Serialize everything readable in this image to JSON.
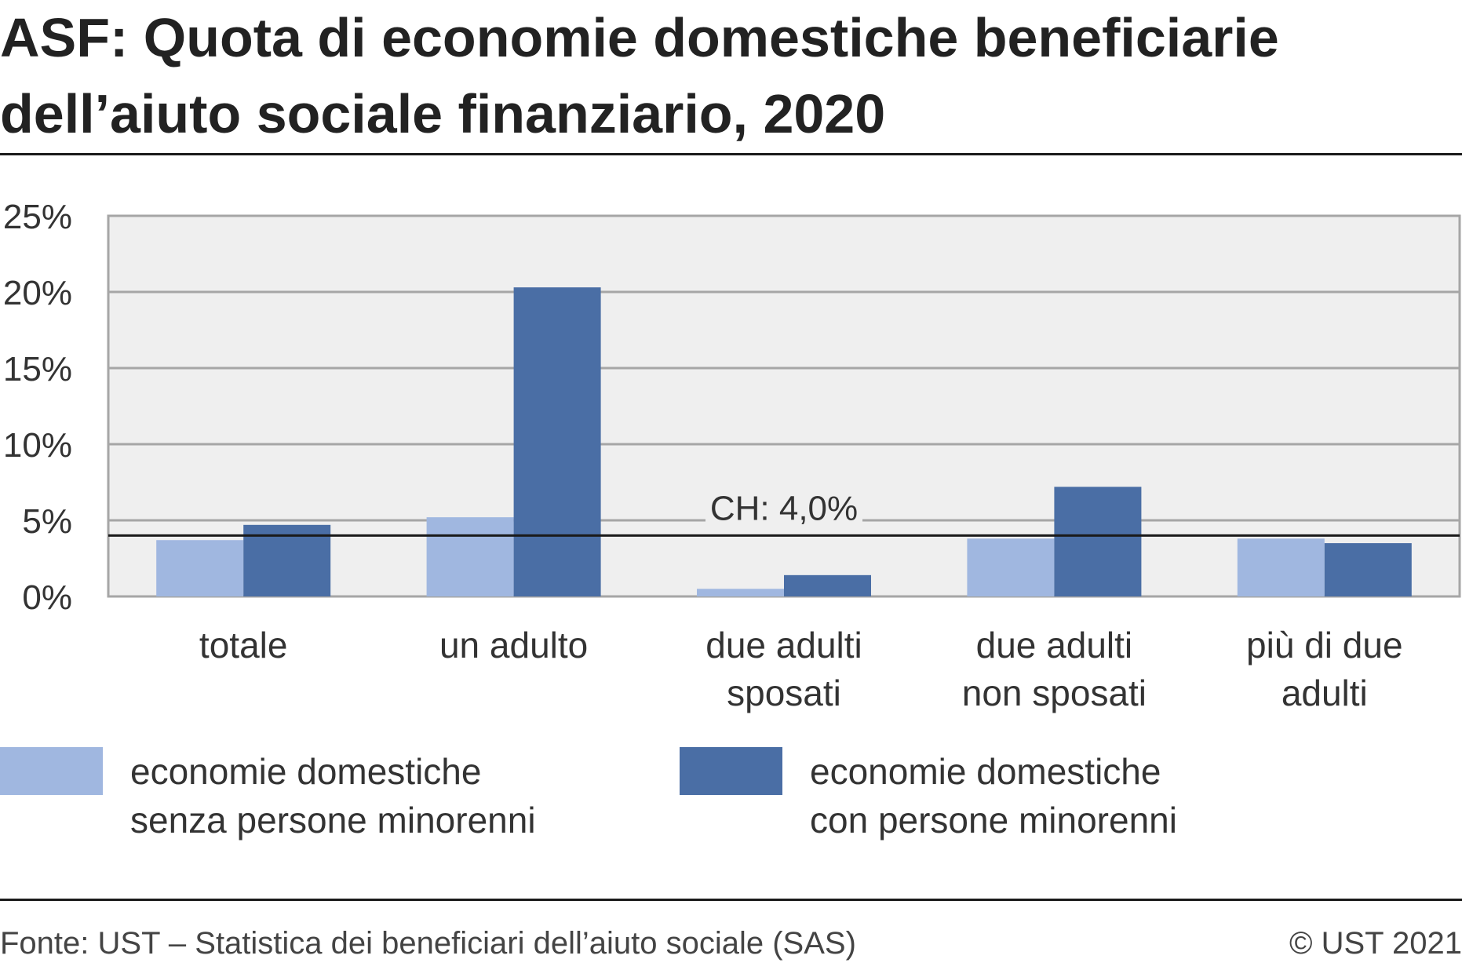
{
  "title": "ASF: Quota di economie domestiche beneficiarie dell’aiuto sociale finanziario, 2020",
  "footer": {
    "source": "Fonte: UST – Statistica dei beneficiari dell’aiuto sociale (SAS)",
    "copyright": "© UST 2021"
  },
  "colors": {
    "series_light": "#a0b7e0",
    "series_dark": "#4a6ea5",
    "plot_background": "#efefef",
    "grid": "#a6a6a6",
    "reference_line": "#1a1a1a"
  },
  "legend": [
    {
      "label": "economie domestiche\nsenza persone minorenni",
      "color": "#a0b7e0"
    },
    {
      "label": "economie domestiche\ncon persone minorenni",
      "color": "#4a6ea5"
    }
  ],
  "chart_data": {
    "type": "bar",
    "title": "ASF: Quota di economie domestiche beneficiarie dell’aiuto sociale finanziario, 2020",
    "categories": [
      "totale",
      "un adulto",
      "due adulti\nsposati",
      "due adulti\nnon sposati",
      "più di due\nadulti"
    ],
    "series": [
      {
        "name": "economie domestiche senza persone minorenni",
        "values": [
          3.7,
          5.2,
          0.5,
          3.8,
          3.8
        ]
      },
      {
        "name": "economie domestiche con persone minorenni",
        "values": [
          4.7,
          20.3,
          1.4,
          7.2,
          3.5
        ]
      }
    ],
    "ylim": [
      0,
      25
    ],
    "yticks": [
      0,
      5,
      10,
      15,
      20,
      25
    ],
    "ytick_labels": [
      "0%",
      "5%",
      "10%",
      "15%",
      "20%",
      "25%"
    ],
    "grid": true,
    "legend_position": "bottom",
    "reference_line": {
      "value": 4.0,
      "label": "CH: 4,0%"
    }
  }
}
